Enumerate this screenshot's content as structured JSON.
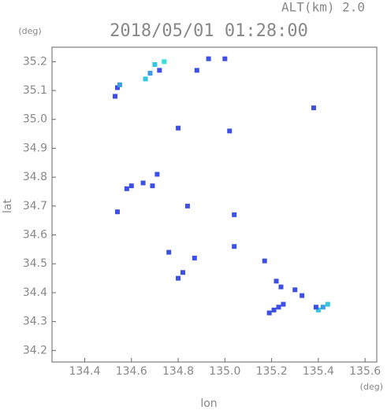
{
  "chart_data": {
    "type": "scatter",
    "title": "2018/05/01 01:28:00",
    "subtitle": "ALT(km) 2.0",
    "x_label": "lon",
    "y_label": "lat",
    "x_unit": "(deg)",
    "y_unit": "(deg)",
    "xlim": [
      134.26,
      135.65
    ],
    "ylim": [
      34.16,
      35.25
    ],
    "xticks": [
      134.4,
      134.6,
      134.8,
      {
        "value": 135,
        "label": "135.0"
      },
      135.2,
      135.4,
      135.6
    ],
    "yticks": [
      34.2,
      34.3,
      34.4,
      34.5,
      34.6,
      34.7,
      34.8,
      34.9,
      {
        "value": 35,
        "label": "35.0"
      },
      35.1,
      35.2
    ],
    "x": [
      134.54,
      134.53,
      134.55,
      134.7,
      134.68,
      134.66,
      134.72,
      134.74,
      134.93,
      135.0,
      134.88,
      135.38,
      134.8,
      135.02,
      134.6,
      134.58,
      134.65,
      134.69,
      134.71,
      134.54,
      134.84,
      135.04,
      134.76,
      134.87,
      135.04,
      135.17,
      134.82,
      134.8,
      135.22,
      135.24,
      135.3,
      135.33,
      135.25,
      135.23,
      135.19,
      135.21,
      135.4,
      135.42,
      135.44,
      135.39
    ],
    "y": [
      35.11,
      35.08,
      35.12,
      35.19,
      35.16,
      35.14,
      35.17,
      35.2,
      35.21,
      35.21,
      35.17,
      35.04,
      34.97,
      34.96,
      34.77,
      34.76,
      34.78,
      34.77,
      34.81,
      34.68,
      34.7,
      34.67,
      34.54,
      34.52,
      34.56,
      34.51,
      34.47,
      34.45,
      34.44,
      34.42,
      34.41,
      34.39,
      34.36,
      34.35,
      34.33,
      34.34,
      34.34,
      34.35,
      34.36,
      34.35
    ],
    "colors": [
      "#3c50e6",
      "#3c50e6",
      "#3c9ce8",
      "#33c8e0",
      "#3c9ce8",
      "#33c8e0",
      "#3c50e6",
      "#33e0d8",
      "#3c50e6",
      "#3c50e6",
      "#3c50e6",
      "#3c50e6",
      "#3c50e6",
      "#3c50e6",
      "#3c50e6",
      "#3c50e6",
      "#3c50e6",
      "#3c50e6",
      "#3c50e6",
      "#3c50e6",
      "#3c50e6",
      "#3c50e6",
      "#3c50e6",
      "#3c50e6",
      "#3c50e6",
      "#3c50e6",
      "#3c50e6",
      "#3c50e6",
      "#3c50e6",
      "#3c50e6",
      "#3c50e6",
      "#3c50e6",
      "#3c50e6",
      "#3c50e6",
      "#3c50e6",
      "#3c50e6",
      "#33c8e0",
      "#3c9ce8",
      "#33c8e0",
      "#3c50e6"
    ]
  }
}
